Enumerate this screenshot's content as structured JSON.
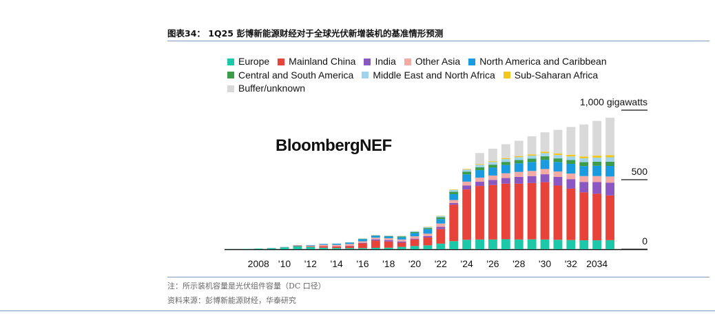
{
  "figure": {
    "title": "图表34： 1Q25 彭博新能源财经对于全球光伏新增装机的基准情形预测",
    "note": "注：所示装机容量是光伏组件容量（DC 口径）",
    "source": "资料来源：彭博新能源财经，华泰研究"
  },
  "watermark": "BloombergNEF",
  "chart_data": {
    "type": "bar",
    "stacked": true,
    "ylim": [
      0,
      1000
    ],
    "y_ticks": [
      {
        "value": 1000,
        "label": "1,000 gigawatts"
      },
      {
        "value": 500,
        "label": "500"
      },
      {
        "value": 0,
        "label": "0"
      }
    ],
    "x_tick_labels": [
      "2008",
      "'10",
      "'12",
      "'14",
      "'16",
      "'18",
      "'20",
      "'22",
      "'24",
      "'26",
      "'28",
      "'30",
      "'32",
      "2034"
    ],
    "categories": [
      "2006",
      "2007",
      "2008",
      "2009",
      "2010",
      "2011",
      "2012",
      "2013",
      "2014",
      "2015",
      "2016",
      "2017",
      "2018",
      "2019",
      "2020",
      "2021",
      "2022",
      "2023",
      "2024",
      "2025",
      "2026",
      "2027",
      "2028",
      "2029",
      "2030",
      "2031",
      "2032",
      "2033",
      "2034",
      "2035"
    ],
    "legend_rows": [
      [
        "Europe",
        "Mainland China",
        "India",
        "Other Asia",
        "North America and Caribbean"
      ],
      [
        "Central and South America",
        "Middle East and North Africa",
        "Sub-Saharan Africa"
      ],
      [
        "Buffer/unknown"
      ]
    ],
    "series": [
      {
        "name": "Europe",
        "color": "#1cc8a8",
        "values": [
          1,
          2,
          5,
          7,
          14,
          22,
          17,
          11,
          9,
          8,
          8,
          10,
          11,
          17,
          23,
          28,
          40,
          58,
          68,
          70,
          70,
          72,
          70,
          71,
          70,
          68,
          66,
          64,
          64,
          65
        ]
      },
      {
        "name": "Mainland China",
        "color": "#e8433a",
        "values": [
          0,
          0,
          0,
          1,
          1,
          3,
          4,
          11,
          11,
          15,
          34,
          52,
          45,
          30,
          48,
          56,
          105,
          262,
          362,
          385,
          392,
          400,
          402,
          405,
          412,
          390,
          370,
          345,
          335,
          322
        ]
      },
      {
        "name": "India",
        "color": "#8b57c1",
        "values": [
          0,
          0,
          0,
          0,
          0,
          0,
          1,
          1,
          1,
          2,
          4,
          9,
          10,
          9,
          5,
          10,
          16,
          12,
          28,
          30,
          36,
          40,
          48,
          50,
          57,
          62,
          68,
          75,
          84,
          92
        ]
      },
      {
        "name": "Other Asia",
        "color": "#f3aaa4",
        "values": [
          0,
          0,
          0,
          0,
          0,
          3,
          4,
          9,
          11,
          13,
          11,
          12,
          13,
          14,
          17,
          18,
          24,
          22,
          28,
          30,
          32,
          34,
          36,
          37,
          38,
          39,
          40,
          42,
          43,
          44
        ]
      },
      {
        "name": "North America and Caribbean",
        "color": "#1a9be0",
        "values": [
          0,
          0,
          0,
          1,
          1,
          2,
          4,
          6,
          8,
          10,
          16,
          14,
          13,
          16,
          24,
          33,
          32,
          42,
          52,
          54,
          57,
          60,
          62,
          64,
          66,
          68,
          70,
          72,
          74,
          76
        ]
      },
      {
        "name": "Central and South America",
        "color": "#3d9c4a",
        "values": [
          0,
          0,
          0,
          0,
          0,
          0,
          0,
          0,
          0,
          1,
          2,
          2,
          3,
          6,
          7,
          8,
          13,
          17,
          19,
          20,
          21,
          22,
          23,
          24,
          25,
          26,
          27,
          28,
          29,
          30
        ]
      },
      {
        "name": "Middle East and North Africa",
        "color": "#9fd4ec",
        "values": [
          0,
          0,
          0,
          0,
          0,
          0,
          0,
          0,
          1,
          1,
          2,
          2,
          3,
          4,
          5,
          7,
          9,
          14,
          16,
          18,
          19,
          20,
          21,
          22,
          23,
          24,
          26,
          28,
          30,
          32
        ]
      },
      {
        "name": "Sub-Saharan Africa",
        "color": "#f3c61a",
        "values": [
          0,
          0,
          0,
          0,
          0,
          0,
          0,
          0,
          0,
          0,
          1,
          1,
          1,
          1,
          1,
          2,
          2,
          3,
          4,
          5,
          6,
          7,
          8,
          9,
          10,
          11,
          12,
          13,
          14,
          15
        ]
      },
      {
        "name": "Buffer/unknown",
        "color": "#d9d9d9",
        "values": [
          0,
          0,
          0,
          0,
          0,
          0,
          0,
          0,
          0,
          0,
          0,
          0,
          0,
          0,
          0,
          0,
          0,
          0,
          0,
          80,
          90,
          100,
          110,
          130,
          140,
          170,
          200,
          230,
          250,
          270
        ]
      }
    ]
  }
}
